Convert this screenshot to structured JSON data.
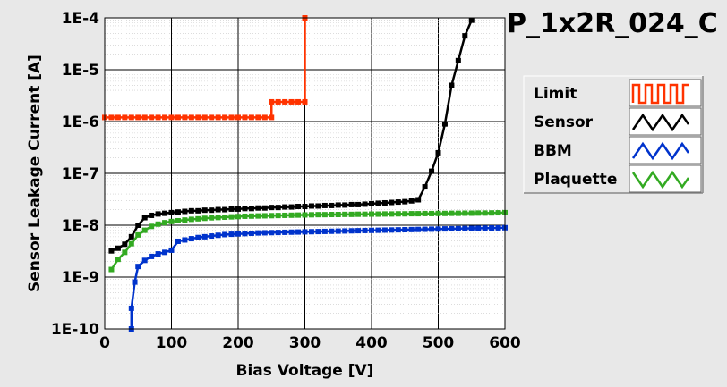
{
  "chart_data": {
    "type": "line",
    "title": "P_1x2R_024_C",
    "xlabel": "Bias Voltage [V]",
    "ylabel": "Sensor Leakage Current [A]",
    "xlim": [
      0,
      600
    ],
    "ylim": [
      1e-10,
      0.0001
    ],
    "y_scale": "log",
    "grid": true,
    "legend_position": "right",
    "x_ticks": [
      "0",
      "100",
      "200",
      "300",
      "400",
      "500",
      "600"
    ],
    "y_ticks": [
      "1E-10",
      "1E-9",
      "1E-8",
      "1E-7",
      "1E-6",
      "1E-5",
      "1E-4"
    ],
    "series": [
      {
        "name": "Limit",
        "color": "#ff3300",
        "x": [
          0,
          10,
          20,
          30,
          40,
          50,
          60,
          70,
          80,
          90,
          100,
          110,
          120,
          130,
          140,
          150,
          160,
          170,
          180,
          190,
          200,
          210,
          220,
          230,
          240,
          250,
          250,
          260,
          270,
          280,
          290,
          300,
          300
        ],
        "y": [
          1.2e-06,
          1.2e-06,
          1.2e-06,
          1.2e-06,
          1.2e-06,
          1.2e-06,
          1.2e-06,
          1.2e-06,
          1.2e-06,
          1.2e-06,
          1.2e-06,
          1.2e-06,
          1.2e-06,
          1.2e-06,
          1.2e-06,
          1.2e-06,
          1.2e-06,
          1.2e-06,
          1.2e-06,
          1.2e-06,
          1.2e-06,
          1.2e-06,
          1.2e-06,
          1.2e-06,
          1.2e-06,
          1.2e-06,
          2.4e-06,
          2.4e-06,
          2.4e-06,
          2.4e-06,
          2.4e-06,
          2.4e-06,
          0.0001
        ]
      },
      {
        "name": "Sensor",
        "color": "#000000",
        "x": [
          10,
          20,
          30,
          40,
          50,
          60,
          70,
          80,
          90,
          100,
          110,
          120,
          130,
          140,
          150,
          160,
          170,
          180,
          190,
          200,
          210,
          220,
          230,
          240,
          250,
          260,
          270,
          280,
          290,
          300,
          310,
          320,
          330,
          340,
          350,
          360,
          370,
          380,
          390,
          400,
          410,
          420,
          430,
          440,
          450,
          460,
          470,
          480,
          490,
          500,
          510,
          520,
          530,
          540,
          550
        ],
        "y": [
          3.2e-09,
          3.6e-09,
          4.3e-09,
          6e-09,
          1e-08,
          1.4e-08,
          1.55e-08,
          1.65e-08,
          1.7e-08,
          1.75e-08,
          1.8e-08,
          1.85e-08,
          1.9e-08,
          1.9e-08,
          1.95e-08,
          1.95e-08,
          2e-08,
          2e-08,
          2.05e-08,
          2.05e-08,
          2.1e-08,
          2.1e-08,
          2.15e-08,
          2.15e-08,
          2.2e-08,
          2.2e-08,
          2.25e-08,
          2.25e-08,
          2.3e-08,
          2.3e-08,
          2.35e-08,
          2.35e-08,
          2.4e-08,
          2.4e-08,
          2.45e-08,
          2.45e-08,
          2.5e-08,
          2.5e-08,
          2.55e-08,
          2.6e-08,
          2.65e-08,
          2.7e-08,
          2.75e-08,
          2.8e-08,
          2.85e-08,
          2.95e-08,
          3.1e-08,
          5.5e-08,
          1.1e-07,
          2.5e-07,
          9e-07,
          5e-06,
          1.5e-05,
          4.5e-05,
          9e-05
        ]
      },
      {
        "name": "BBM",
        "color": "#0033cc",
        "x": [
          40,
          40,
          45,
          50,
          60,
          70,
          80,
          90,
          100,
          110,
          120,
          130,
          140,
          150,
          160,
          170,
          180,
          190,
          200,
          210,
          220,
          230,
          240,
          250,
          260,
          270,
          280,
          290,
          300,
          310,
          320,
          330,
          340,
          350,
          360,
          370,
          380,
          390,
          400,
          410,
          420,
          430,
          440,
          450,
          460,
          470,
          480,
          490,
          500,
          510,
          520,
          530,
          540,
          550,
          560,
          570,
          580,
          590,
          600
        ],
        "y": [
          1e-10,
          2.5e-10,
          8e-10,
          1.6e-09,
          2.1e-09,
          2.5e-09,
          2.8e-09,
          3e-09,
          3.3e-09,
          4.9e-09,
          5.2e-09,
          5.5e-09,
          5.8e-09,
          6e-09,
          6.2e-09,
          6.4e-09,
          6.6e-09,
          6.7e-09,
          6.8e-09,
          6.9e-09,
          7e-09,
          7.1e-09,
          7.15e-09,
          7.2e-09,
          7.25e-09,
          7.3e-09,
          7.35e-09,
          7.4e-09,
          7.45e-09,
          7.5e-09,
          7.55e-09,
          7.6e-09,
          7.65e-09,
          7.7e-09,
          7.75e-09,
          7.8e-09,
          7.85e-09,
          7.9e-09,
          7.95e-09,
          8e-09,
          8.05e-09,
          8.1e-09,
          8.15e-09,
          8.2e-09,
          8.25e-09,
          8.3e-09,
          8.35e-09,
          8.4e-09,
          8.45e-09,
          8.5e-09,
          8.55e-09,
          8.6e-09,
          8.65e-09,
          8.7e-09,
          8.75e-09,
          8.8e-09,
          8.85e-09,
          8.9e-09,
          8.95e-09
        ]
      },
      {
        "name": "Plaquette",
        "color": "#33aa22",
        "x": [
          10,
          20,
          30,
          40,
          50,
          60,
          70,
          80,
          90,
          100,
          110,
          120,
          130,
          140,
          150,
          160,
          170,
          180,
          190,
          200,
          210,
          220,
          230,
          240,
          250,
          260,
          270,
          280,
          290,
          300,
          310,
          320,
          330,
          340,
          350,
          360,
          370,
          380,
          390,
          400,
          410,
          420,
          430,
          440,
          450,
          460,
          470,
          480,
          490,
          500,
          510,
          520,
          530,
          540,
          550,
          560,
          570,
          580,
          590,
          600
        ],
        "y": [
          1.4e-09,
          2.2e-09,
          3e-09,
          4.4e-09,
          6.5e-09,
          8e-09,
          9.5e-09,
          1.05e-08,
          1.12e-08,
          1.18e-08,
          1.22e-08,
          1.26e-08,
          1.3e-08,
          1.33e-08,
          1.36e-08,
          1.39e-08,
          1.41e-08,
          1.43e-08,
          1.45e-08,
          1.47e-08,
          1.49e-08,
          1.5e-08,
          1.51e-08,
          1.52e-08,
          1.53e-08,
          1.54e-08,
          1.55e-08,
          1.56e-08,
          1.57e-08,
          1.58e-08,
          1.59e-08,
          1.6e-08,
          1.6e-08,
          1.61e-08,
          1.61e-08,
          1.62e-08,
          1.62e-08,
          1.63e-08,
          1.63e-08,
          1.64e-08,
          1.64e-08,
          1.65e-08,
          1.65e-08,
          1.66e-08,
          1.66e-08,
          1.67e-08,
          1.67e-08,
          1.68e-08,
          1.68e-08,
          1.69e-08,
          1.69e-08,
          1.7e-08,
          1.7e-08,
          1.71e-08,
          1.71e-08,
          1.72e-08,
          1.72e-08,
          1.73e-08,
          1.74e-08,
          1.75e-08
        ]
      }
    ]
  }
}
